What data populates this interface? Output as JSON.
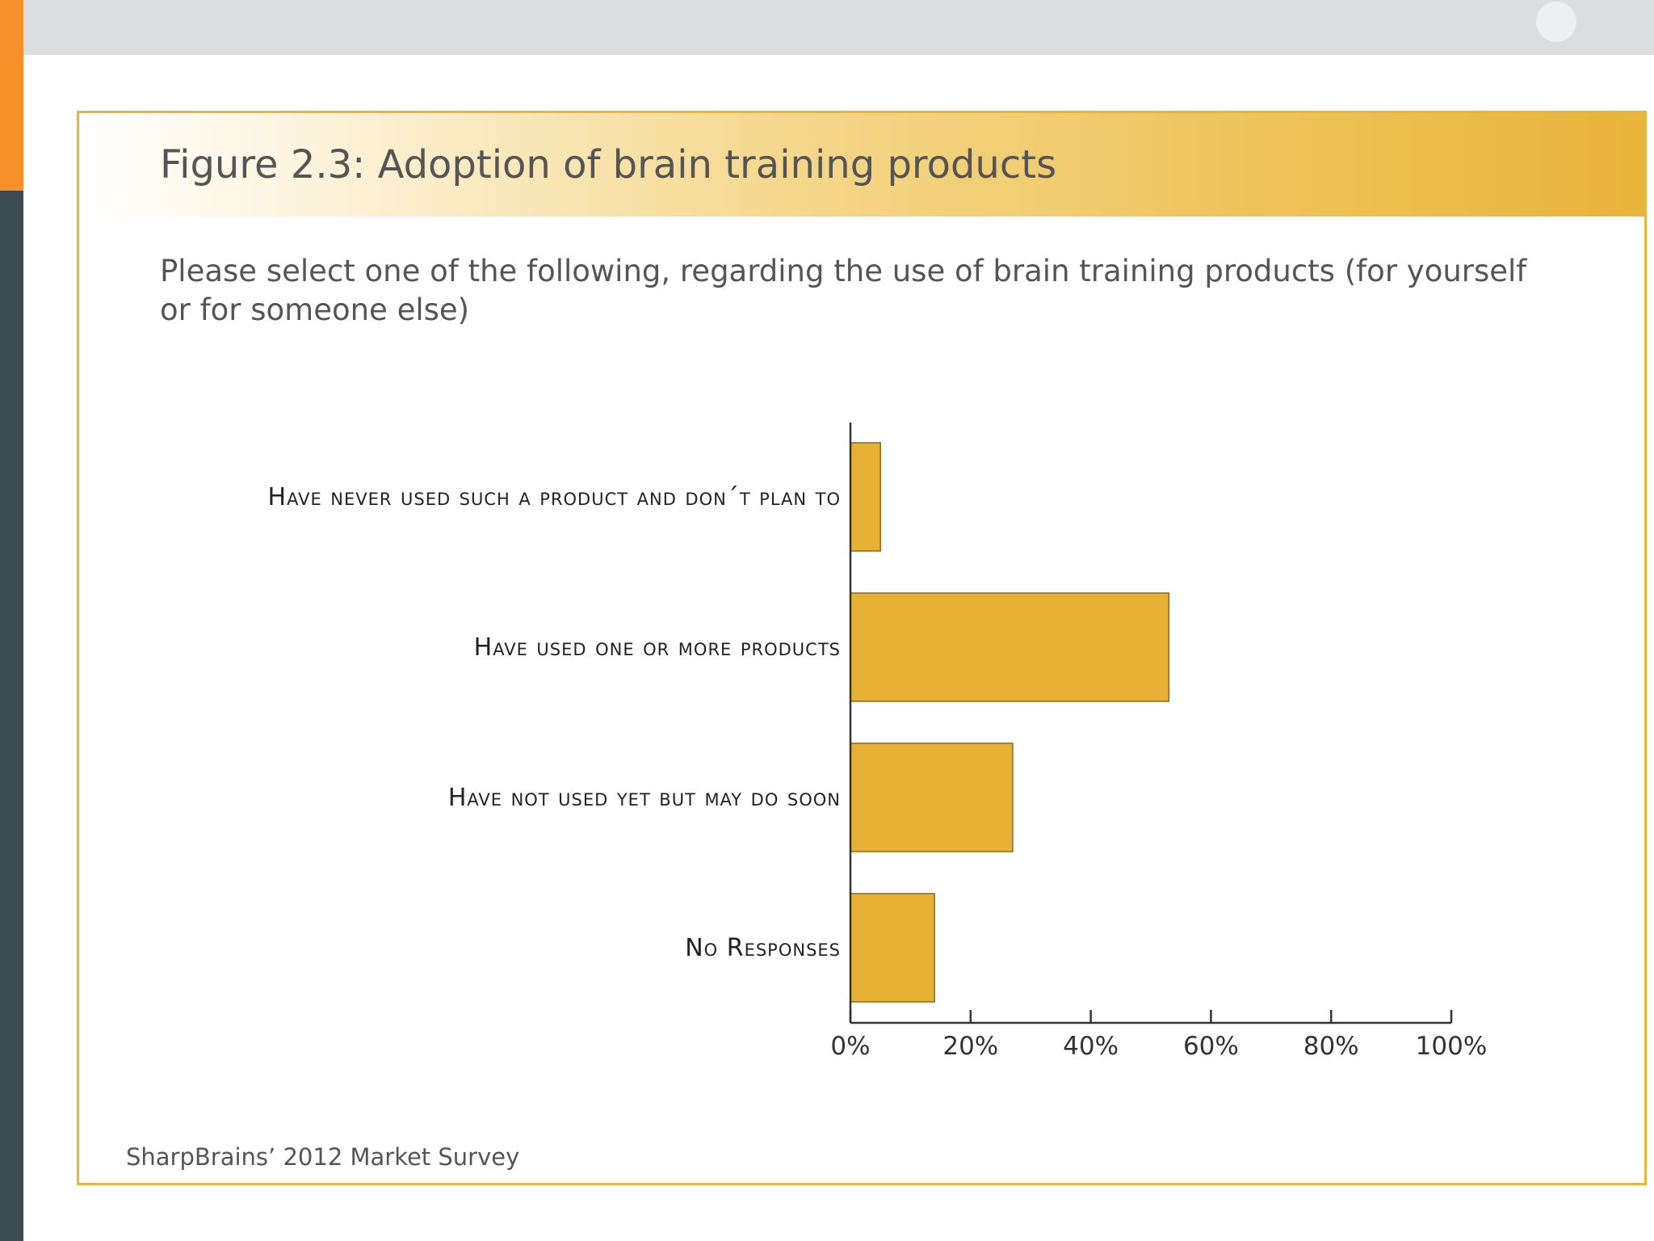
{
  "figure": {
    "title": "Figure 2.3: Adoption of brain training products",
    "question": "Please select one of the following, regarding the use of brain training products (for yourself or for someone else)",
    "source": "SharpBrains’ 2012 Market Survey"
  },
  "colors": {
    "bar": "#e6b135",
    "frame": "#e9b53a",
    "accent_orange": "#f7922a",
    "sidebar_dark": "#3c4a52"
  },
  "chart_data": {
    "type": "bar",
    "orientation": "horizontal",
    "title": "Figure 2.3: Adoption of brain training products",
    "categories": [
      "Have never used such a product and don´t plan to",
      "Have used one or more products",
      "Have not used yet but may do soon",
      "No Responses"
    ],
    "values": [
      5,
      53,
      27,
      14
    ],
    "xlabel": "",
    "ylabel": "",
    "xlim": [
      0,
      100
    ],
    "x_ticks": [
      "0%",
      "20%",
      "40%",
      "60%",
      "80%",
      "100%"
    ],
    "grid": false,
    "legend": "none"
  }
}
